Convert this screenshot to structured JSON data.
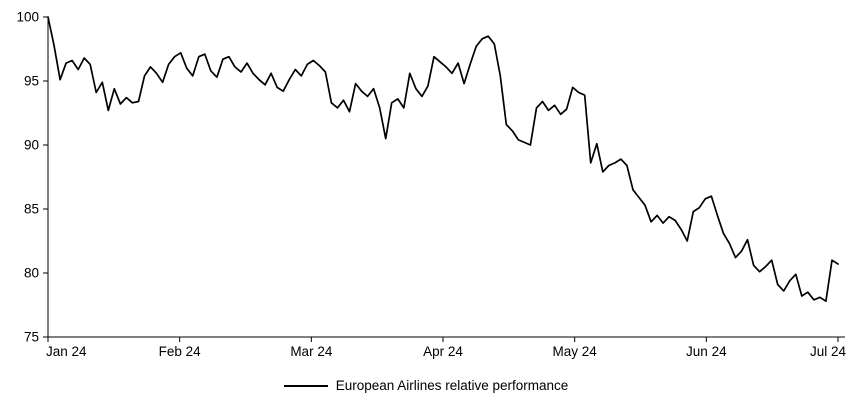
{
  "chart_data": {
    "type": "line",
    "title": "",
    "xlabel": "",
    "ylabel": "",
    "ylim": [
      75,
      100
    ],
    "y_ticks": [
      75,
      80,
      85,
      90,
      95,
      100
    ],
    "x_tick_labels": [
      "Jan 24",
      "Feb 24",
      "Mar 24",
      "Apr 24",
      "May 24",
      "Jun 24",
      "Jul 24"
    ],
    "grid": false,
    "legend_position": "bottom",
    "line_color": "#000000",
    "axis_color": "#000000",
    "series": [
      {
        "name": "European Airlines relative performance",
        "values": [
          100,
          97.8,
          95.1,
          96.4,
          96.6,
          95.9,
          96.8,
          96.3,
          94.1,
          94.9,
          92.7,
          94.4,
          93.2,
          93.7,
          93.3,
          93.4,
          95.4,
          96.1,
          95.6,
          94.9,
          96.3,
          96.9,
          97.2,
          96.0,
          95.4,
          96.9,
          97.1,
          95.8,
          95.3,
          96.7,
          96.9,
          96.1,
          95.7,
          96.4,
          95.6,
          95.1,
          94.7,
          95.6,
          94.5,
          94.2,
          95.1,
          95.9,
          95.4,
          96.3,
          96.6,
          96.2,
          95.7,
          93.3,
          92.9,
          93.5,
          92.6,
          94.8,
          94.2,
          93.8,
          94.4,
          92.9,
          90.5,
          93.3,
          93.6,
          92.9,
          95.6,
          94.4,
          93.8,
          94.6,
          96.9,
          96.5,
          96.1,
          95.6,
          96.4,
          94.8,
          96.3,
          97.7,
          98.3,
          98.5,
          97.9,
          95.4,
          91.6,
          91.1,
          90.4,
          90.2,
          90.0,
          92.9,
          93.4,
          92.7,
          93.1,
          92.4,
          92.8,
          94.5,
          94.1,
          93.9,
          88.6,
          90.1,
          87.9,
          88.4,
          88.6,
          88.9,
          88.4,
          86.5,
          85.9,
          85.3,
          84.0,
          84.5,
          83.9,
          84.4,
          84.1,
          83.4,
          82.5,
          84.8,
          85.1,
          85.8,
          86.0,
          84.5,
          83.1,
          82.3,
          81.2,
          81.7,
          82.6,
          80.6,
          80.1,
          80.5,
          81.0,
          79.1,
          78.6,
          79.4,
          79.9,
          78.2,
          78.5,
          77.9,
          78.1,
          77.8,
          81.0,
          80.7
        ]
      }
    ]
  }
}
